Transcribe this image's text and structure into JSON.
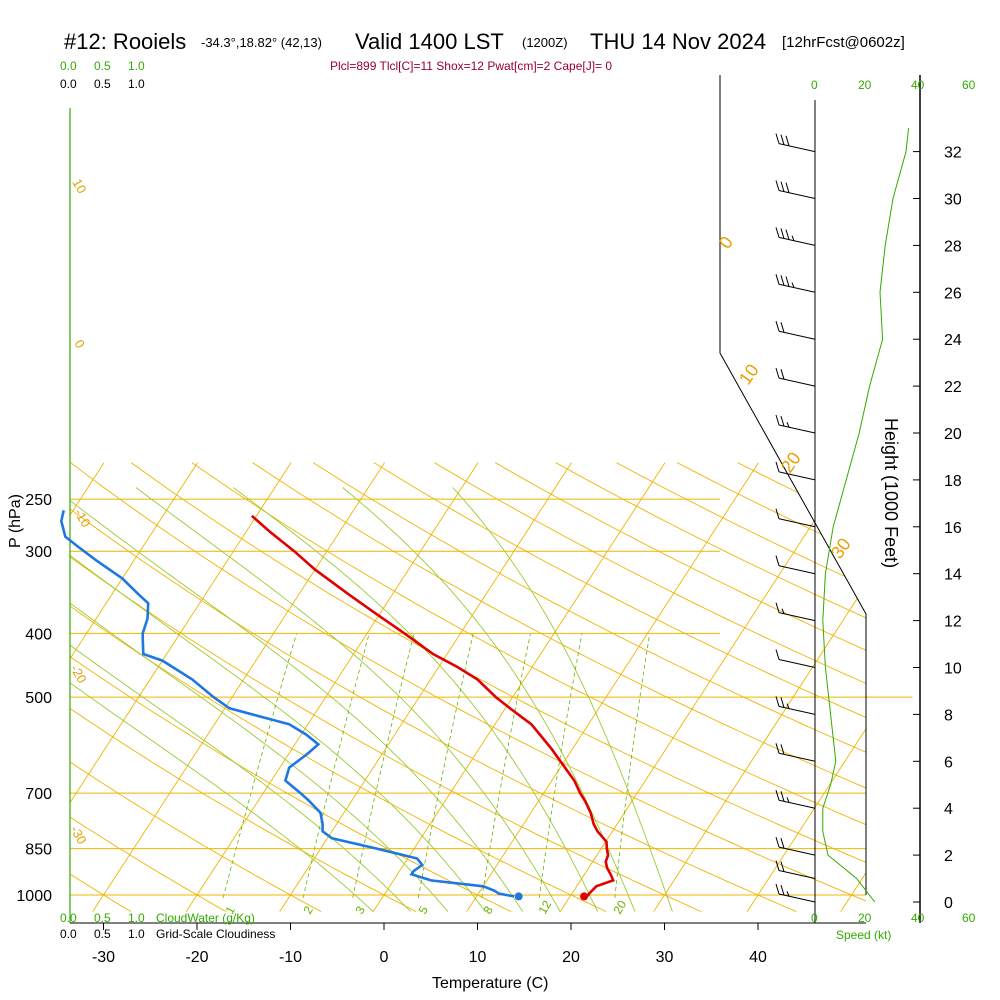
{
  "header": {
    "station": "#12: Rooiels",
    "coords": "-34.3°,18.82° (42,13)",
    "valid": "Valid 1400 LST",
    "valid_z": "(1200Z)",
    "date": "THU 14 Nov 2024",
    "forecast": "[12hrFcst@0602z]",
    "params": "Plcl=899 Tlcl[C]=11 Shox=12 Pwat[cm]=2 Cape[J]= 0"
  },
  "colors": {
    "isotherm": "#f0b400",
    "dry_adiabat": "#f0b400",
    "moist_adiabat": "#99cc33",
    "mixing_ratio": "#66b300",
    "temperature": "#e00000",
    "dewpoint": "#1f77e0",
    "cloud": "#33aa00"
  },
  "chart_data": {
    "type": "line",
    "title": "#12: Rooiels -34.3°,18.82° (42,13) Valid 1400 LST (1200Z) THU 14 Nov 2024 [12hrFcst@0602z]",
    "xlabel": "Temperature (C)",
    "ylabel": "P (hPa)",
    "right_ylabel": "Height (1000 Feet)",
    "x_ticks": [
      "-30",
      "-20",
      "-10",
      "0",
      "10",
      "20",
      "30",
      "40"
    ],
    "x_tick_values": [
      -30,
      -20,
      -10,
      0,
      10,
      20,
      30,
      40
    ],
    "p_ticks": [
      "250",
      "300",
      "400",
      "500",
      "700",
      "850",
      "1000"
    ],
    "p_tick_values": [
      250,
      300,
      400,
      500,
      700,
      850,
      1000
    ],
    "height_ticks": [
      "0",
      "2",
      "4",
      "6",
      "8",
      "10",
      "12",
      "14",
      "16",
      "18",
      "20",
      "22",
      "24",
      "26",
      "28",
      "30",
      "32"
    ],
    "xlim": [
      -35,
      35
    ],
    "plim": [
      1000,
      250
    ],
    "skew": "skew-T log-p",
    "grid": true,
    "series": [
      {
        "name": "Temperature",
        "units": "C",
        "points": [
          [
            1005,
            22.0
          ],
          [
            1000,
            21.8
          ],
          [
            990,
            21.9
          ],
          [
            970,
            22.1
          ],
          [
            950,
            23.5
          ],
          [
            930,
            22.8
          ],
          [
            910,
            22.0
          ],
          [
            890,
            21.4
          ],
          [
            870,
            21.2
          ],
          [
            850,
            20.6
          ],
          [
            830,
            20.1
          ],
          [
            800,
            18.4
          ],
          [
            780,
            17.5
          ],
          [
            750,
            16.4
          ],
          [
            720,
            15.0
          ],
          [
            700,
            13.9
          ],
          [
            670,
            12.4
          ],
          [
            640,
            10.5
          ],
          [
            600,
            7.8
          ],
          [
            570,
            5.5
          ],
          [
            550,
            3.9
          ],
          [
            520,
            0.5
          ],
          [
            500,
            -1.8
          ],
          [
            470,
            -5.0
          ],
          [
            450,
            -8.0
          ],
          [
            430,
            -11.5
          ],
          [
            400,
            -16.0
          ],
          [
            370,
            -21.0
          ],
          [
            350,
            -24.5
          ],
          [
            320,
            -30.0
          ],
          [
            300,
            -33.5
          ],
          [
            280,
            -37.5
          ],
          [
            265,
            -40.5
          ]
        ]
      },
      {
        "name": "Dewpoint",
        "units": "C",
        "points": [
          [
            1005,
            14.0
          ],
          [
            995,
            12.2
          ],
          [
            985,
            11.5
          ],
          [
            970,
            10.0
          ],
          [
            950,
            4.0
          ],
          [
            930,
            1.5
          ],
          [
            920,
            1.5
          ],
          [
            900,
            2.0
          ],
          [
            880,
            1.0
          ],
          [
            850,
            -4.0
          ],
          [
            820,
            -9.5
          ],
          [
            800,
            -11.0
          ],
          [
            780,
            -11.5
          ],
          [
            750,
            -12.5
          ],
          [
            720,
            -14.5
          ],
          [
            700,
            -16.0
          ],
          [
            670,
            -18.5
          ],
          [
            640,
            -19.0
          ],
          [
            610,
            -18.0
          ],
          [
            590,
            -17.5
          ],
          [
            570,
            -19.5
          ],
          [
            550,
            -22.0
          ],
          [
            520,
            -29.5
          ],
          [
            500,
            -32.0
          ],
          [
            470,
            -35.5
          ],
          [
            440,
            -40.0
          ],
          [
            430,
            -42.5
          ],
          [
            410,
            -43.5
          ],
          [
            400,
            -44.0
          ],
          [
            380,
            -44.5
          ],
          [
            360,
            -45.5
          ],
          [
            350,
            -47.0
          ],
          [
            330,
            -50.0
          ],
          [
            310,
            -54.0
          ],
          [
            295,
            -57.0
          ],
          [
            285,
            -59.0
          ],
          [
            270,
            -60.5
          ],
          [
            260,
            -61.0
          ]
        ]
      }
    ],
    "surface_temperature": 21.5,
    "surface_dewpoint": 14.5,
    "wind_barbs": [
      {
        "height_kft": 32,
        "speed_kt": 30
      },
      {
        "height_kft": 30,
        "speed_kt": 30
      },
      {
        "height_kft": 28,
        "speed_kt": 25
      },
      {
        "height_kft": 26,
        "speed_kt": 25
      },
      {
        "height_kft": 24,
        "speed_kt": 20
      },
      {
        "height_kft": 22,
        "speed_kt": 20
      },
      {
        "height_kft": 20,
        "speed_kt": 15
      },
      {
        "height_kft": 18,
        "speed_kt": 10
      },
      {
        "height_kft": 16,
        "speed_kt": 10
      },
      {
        "height_kft": 14,
        "speed_kt": 10
      },
      {
        "height_kft": 12,
        "speed_kt": 5
      },
      {
        "height_kft": 10,
        "speed_kt": 10
      },
      {
        "height_kft": 8,
        "speed_kt": 15
      },
      {
        "height_kft": 6,
        "speed_kt": 20
      },
      {
        "height_kft": 4,
        "speed_kt": 15
      },
      {
        "height_kft": 2,
        "speed_kt": 20
      },
      {
        "height_kft": 1,
        "speed_kt": 20
      },
      {
        "height_kft": 0,
        "speed_kt": 15
      }
    ],
    "wind_speed_profile": {
      "name": "Speed (kt)",
      "points": [
        [
          0,
          23
        ],
        [
          1,
          16
        ],
        [
          2,
          5
        ],
        [
          3,
          3
        ],
        [
          4,
          3
        ],
        [
          5,
          6
        ],
        [
          6,
          8
        ],
        [
          7,
          7
        ],
        [
          8,
          6
        ],
        [
          9,
          5
        ],
        [
          10,
          4
        ],
        [
          12,
          3
        ],
        [
          14,
          4
        ],
        [
          16,
          7
        ],
        [
          18,
          12
        ],
        [
          20,
          17
        ],
        [
          22,
          21
        ],
        [
          24,
          26
        ],
        [
          26,
          25
        ],
        [
          28,
          27
        ],
        [
          30,
          30
        ],
        [
          32,
          35
        ],
        [
          33,
          36
        ]
      ]
    },
    "isotherm_labels": [
      "10",
      "0",
      "-10",
      "-20",
      "-30",
      "0",
      "10",
      "20",
      "30"
    ],
    "mixing_ratio_labels": [
      "1",
      "2",
      "3",
      "5",
      "8",
      "12",
      "20"
    ]
  },
  "panels": {
    "top_green": [
      "0.0",
      "0.5",
      "1.0"
    ],
    "top_black": [
      "0.0",
      "0.5",
      "1.0"
    ],
    "bottom_green": [
      "0.0",
      "0.5",
      "1.0"
    ],
    "bottom_green_label": "CloudWater (g/Kg)",
    "bottom_black": [
      "0.0",
      "0.5",
      "1.0"
    ],
    "bottom_black_label": "Grid-Scale Cloudiness",
    "speed_top": [
      "0",
      "20",
      "40",
      "60"
    ],
    "speed_bottom": [
      "0",
      "20",
      "40",
      "60"
    ],
    "speed_label": "Speed (kt)"
  }
}
